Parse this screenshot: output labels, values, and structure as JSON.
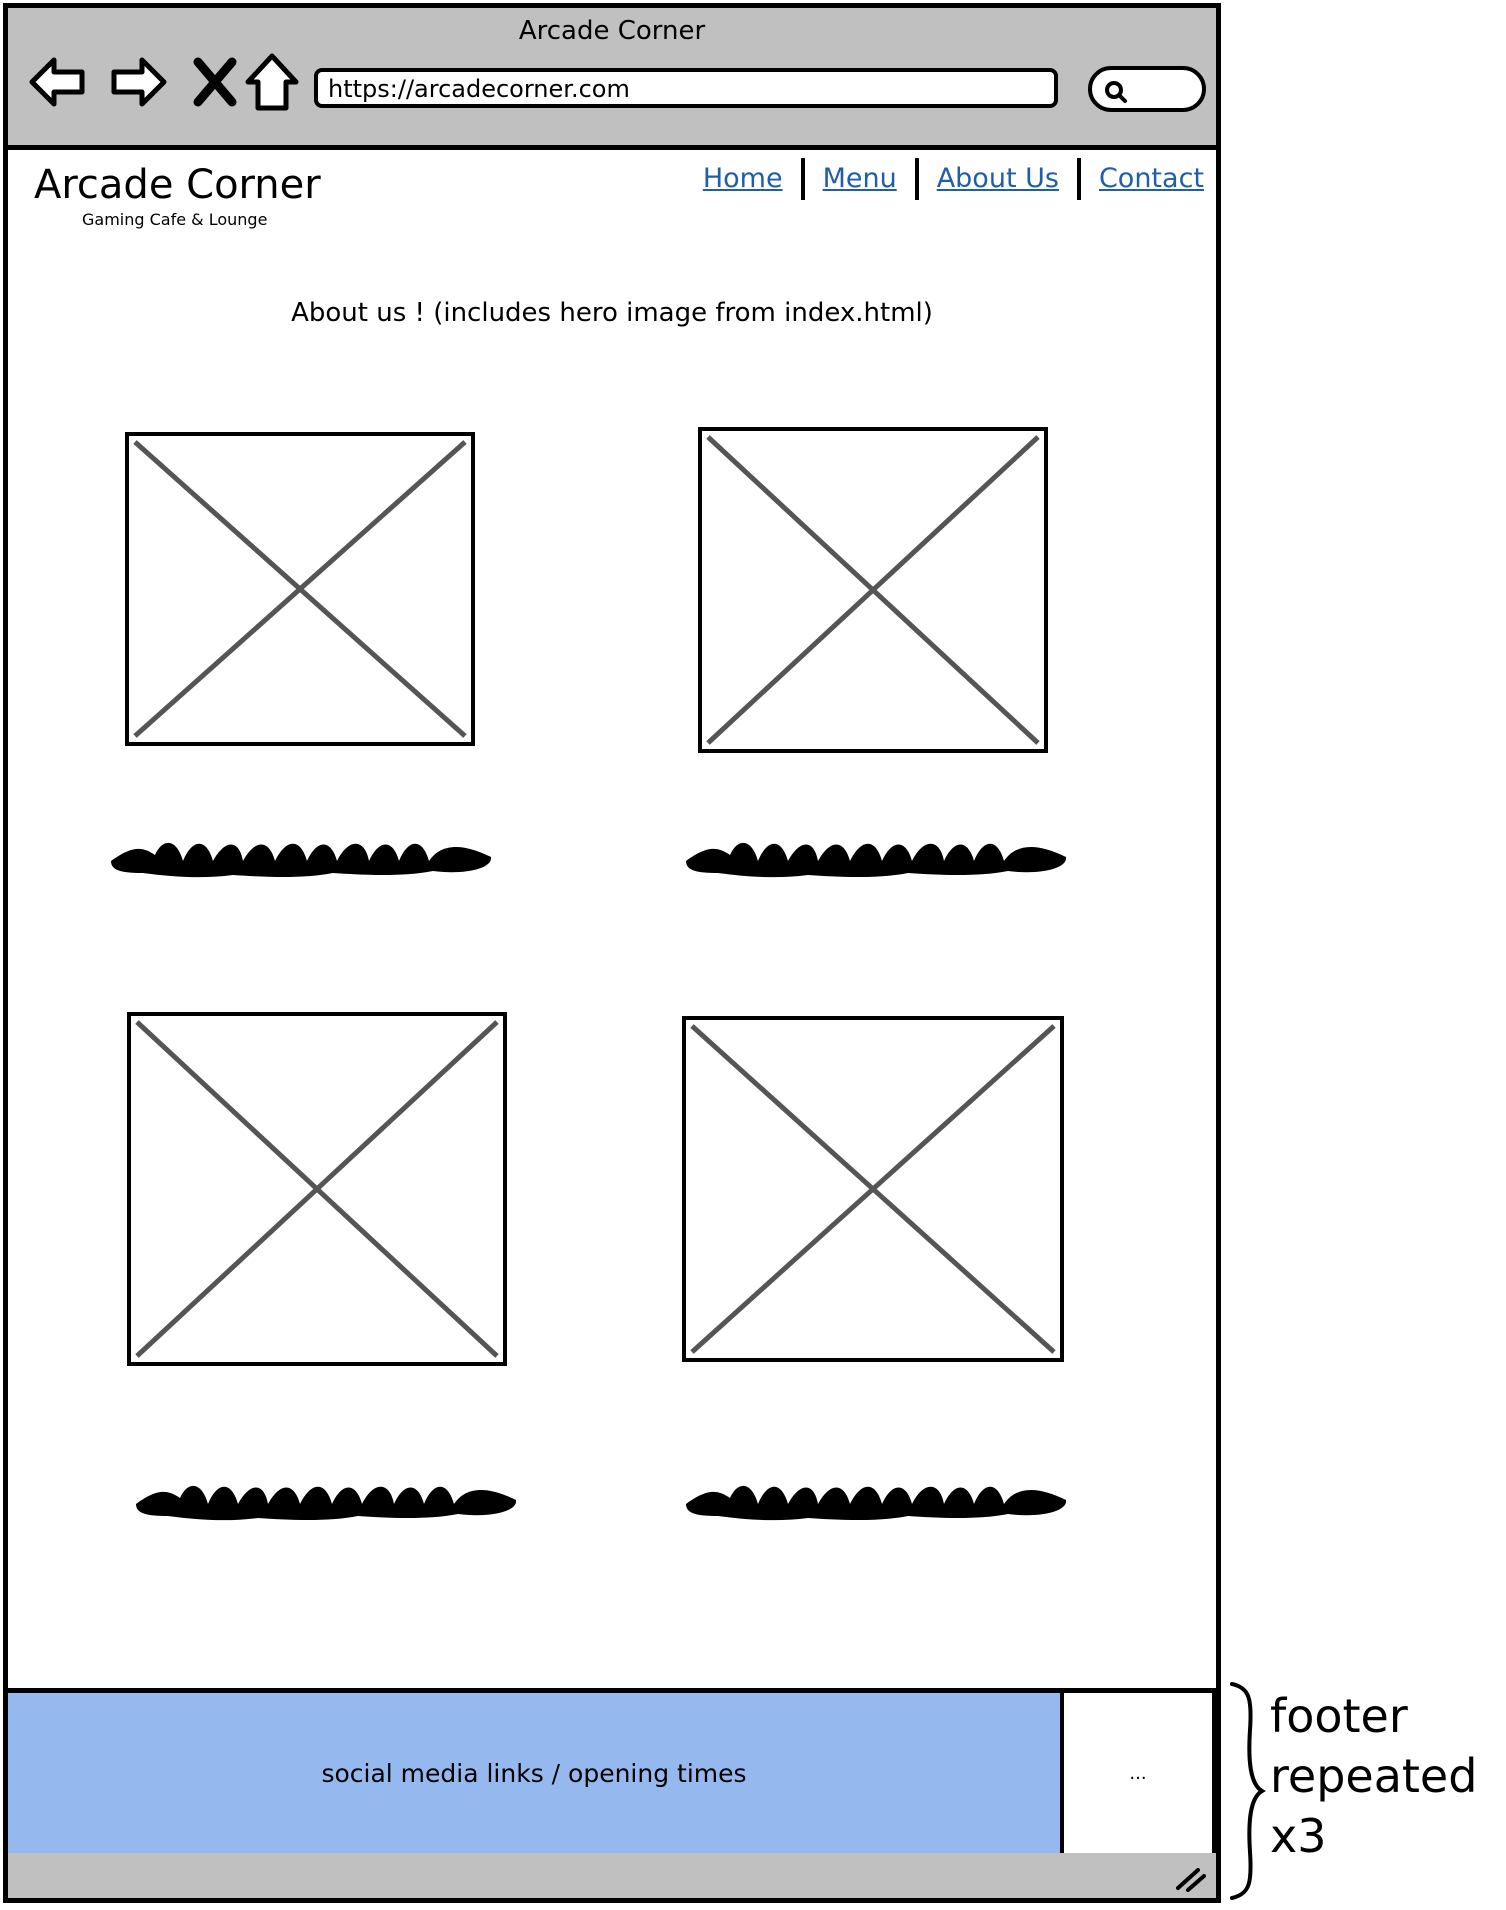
{
  "window": {
    "title": "Arcade Corner",
    "url": "https://arcadecorner.com"
  },
  "toolbar_icons": [
    "back-arrow-icon",
    "forward-arrow-icon",
    "stop-x-icon",
    "home-icon",
    "search-icon"
  ],
  "site": {
    "brand_name": "Arcade Corner",
    "brand_tagline": "Gaming Cafe & Lounge",
    "nav": [
      {
        "label": "Home"
      },
      {
        "label": "Menu"
      },
      {
        "label": "About Us"
      },
      {
        "label": "Contact"
      }
    ],
    "link_color": "#1f5ea8"
  },
  "main": {
    "heading": "About us ! (includes hero image from index.html)",
    "image_placeholder_count": 4,
    "text_scribble_count": 4
  },
  "footer": {
    "main_text": "social media links / opening times",
    "side_text": "...",
    "background_color": "#95b9ef"
  },
  "annotation": {
    "lines": [
      "footer",
      "repeated",
      "x3"
    ]
  }
}
